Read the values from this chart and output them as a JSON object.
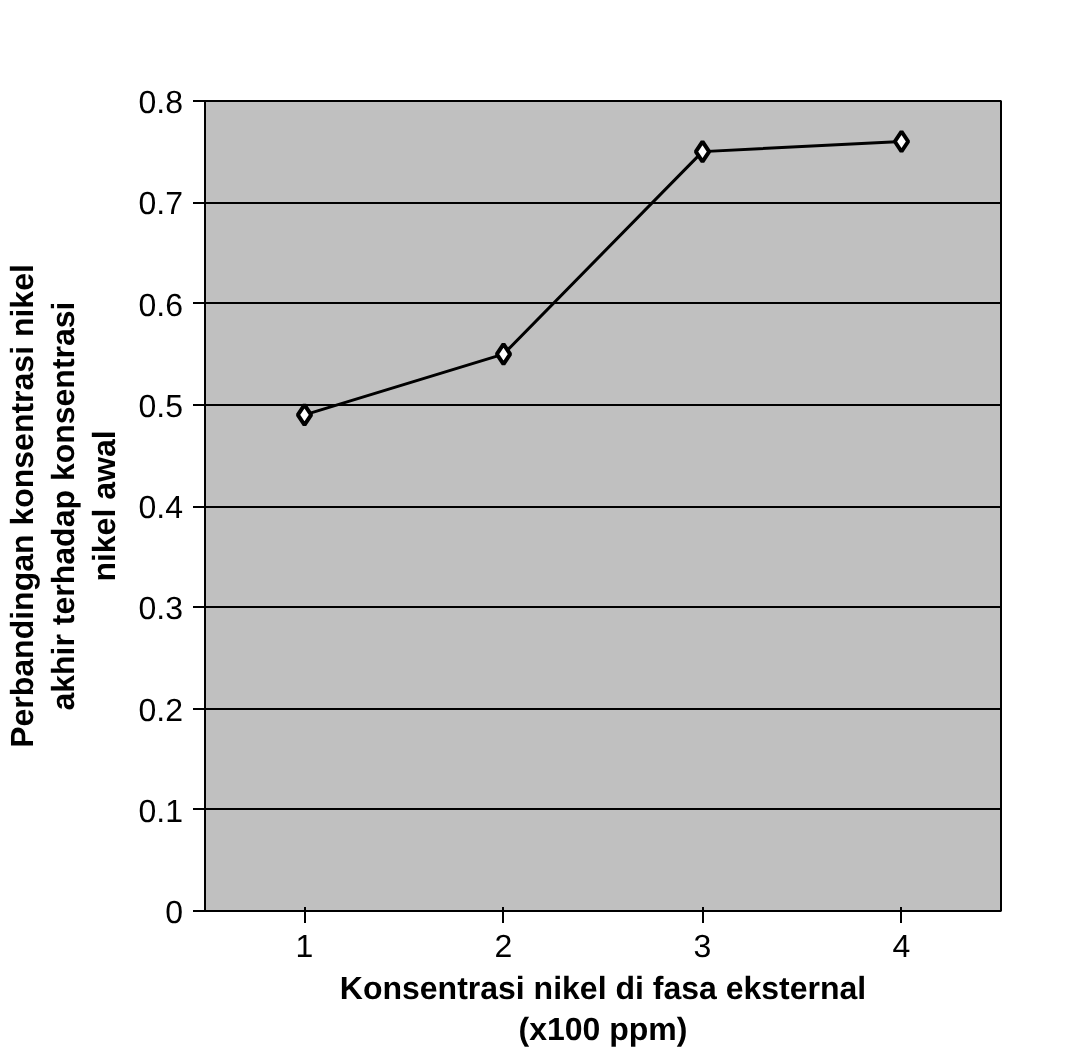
{
  "chart_data": {
    "type": "line",
    "xlabel": "Konsentrasi nikel di fasa eksternal (x100 ppm)",
    "ylabel": "Perbandingan konsentrasi nikel akhir terhadap konsentrasi nikel awal",
    "categories": [
      "1",
      "2",
      "3",
      "4"
    ],
    "series": [
      {
        "color": "#000000",
        "values": [
          0.49,
          0.55,
          0.75,
          0.76
        ]
      }
    ],
    "ylim": [
      0,
      0.8
    ],
    "yticks": [
      0,
      0.1,
      0.2,
      0.3,
      0.4,
      0.5,
      0.6,
      0.7,
      0.8
    ],
    "grid": "y",
    "marker": "diamond",
    "line_style": "solid"
  }
}
